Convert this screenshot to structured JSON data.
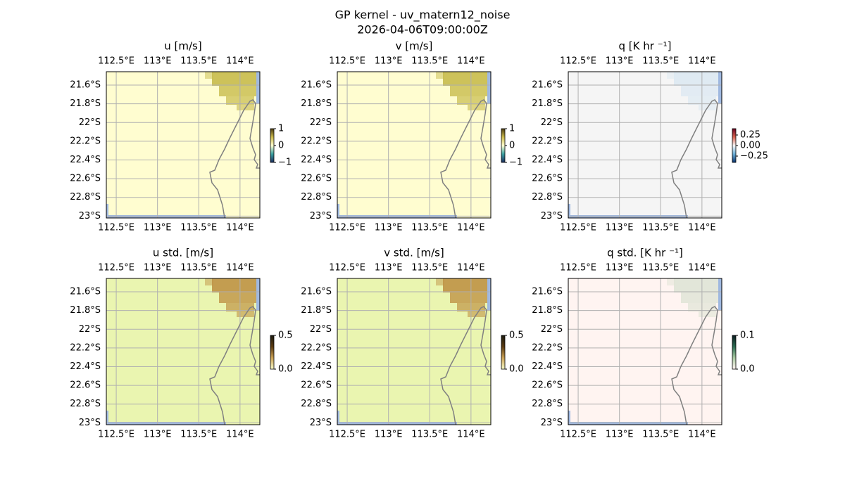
{
  "title": "GP kernel - uv_matern12_noise",
  "subtitle": "2026-04-06T09:00:00Z",
  "lon_lim": [
    112.38,
    114.24
  ],
  "lat_lim": [
    -21.457,
    -23.02
  ],
  "lon_ticks": [
    {
      "value": 112.5,
      "label": "112.5°E"
    },
    {
      "value": 113,
      "label": "113°E"
    },
    {
      "value": 113.5,
      "label": "113.5°E"
    },
    {
      "value": 114,
      "label": "114°E"
    }
  ],
  "lat_ticks": [
    {
      "value": -21.6,
      "label": "21.6°S"
    },
    {
      "value": -21.8,
      "label": "21.8°S"
    },
    {
      "value": -22,
      "label": "22°S"
    },
    {
      "value": -22.2,
      "label": "22.2°S"
    },
    {
      "value": -22.4,
      "label": "22.4°S"
    },
    {
      "value": -22.6,
      "label": "22.6°S"
    },
    {
      "value": -22.8,
      "label": "22.8°S"
    },
    {
      "value": -23,
      "label": "23°S"
    }
  ],
  "panels": [
    {
      "title": "u [m/s]",
      "color": "#fffdd0",
      "patch_color": "#c8bb4c",
      "colorbar": {
        "lim": [
          -1,
          1
        ],
        "colors": [
          "#1a2a5c",
          "#3aa0a0",
          "#fffdd0",
          "#c9b84a",
          "#4a3a10"
        ],
        "ticks": [
          1,
          0,
          {
            "value": -1,
            "label": "−1"
          }
        ]
      }
    },
    {
      "title": "v [m/s]",
      "color": "#fffdd0",
      "patch_color": "#c8bb4c",
      "colorbar": {
        "lim": [
          -1,
          1
        ],
        "colors": [
          "#1a2a5c",
          "#3aa0a0",
          "#fffdd0",
          "#c9b84a",
          "#4a3a10"
        ],
        "ticks": [
          1,
          0,
          {
            "value": -1,
            "label": "−1"
          }
        ]
      }
    },
    {
      "title": "q [K hr ⁻¹]",
      "color": "#f5f5f5",
      "patch_color": "#dde9f2",
      "colorbar": {
        "lim": [
          -0.4,
          0.4
        ],
        "colors": [
          "#08306b",
          "#6aaed6",
          "#f5f5f5",
          "#d6604d",
          "#67001f"
        ],
        "ticks": [
          0.25,
          {
            "value": 0,
            "label": "0.00"
          },
          {
            "value": -0.25,
            "label": "−0.25"
          }
        ]
      }
    },
    {
      "title": "u std. [m/s]",
      "color": "#eaf5b0",
      "patch_color": "#bf9446",
      "colorbar": {
        "lim": [
          0,
          0.5
        ],
        "colors": [
          "#f6f9c8",
          "#c9a054",
          "#5a3a10",
          "#1a1a10"
        ],
        "ticks": [
          0.5,
          {
            "value": 0,
            "label": "0.0"
          }
        ]
      }
    },
    {
      "title": "v std. [m/s]",
      "color": "#eaf5b0",
      "patch_color": "#bf9446",
      "colorbar": {
        "lim": [
          0,
          0.5
        ],
        "colors": [
          "#f6f9c8",
          "#c9a054",
          "#5a3a10",
          "#1a1a10"
        ],
        "ticks": [
          0.5,
          {
            "value": 0,
            "label": "0.0"
          }
        ]
      }
    },
    {
      "title": "q std. [K hr ⁻¹]",
      "color": "#fff4f1",
      "patch_color": "#dfe4d6",
      "colorbar": {
        "lim": [
          0,
          0.1
        ],
        "colors": [
          "#fff4f1",
          "#a8c8a0",
          "#2a6a50",
          "#0a1a20"
        ],
        "ticks": [
          0.1,
          {
            "value": 0,
            "label": "0.0"
          }
        ]
      }
    }
  ]
}
